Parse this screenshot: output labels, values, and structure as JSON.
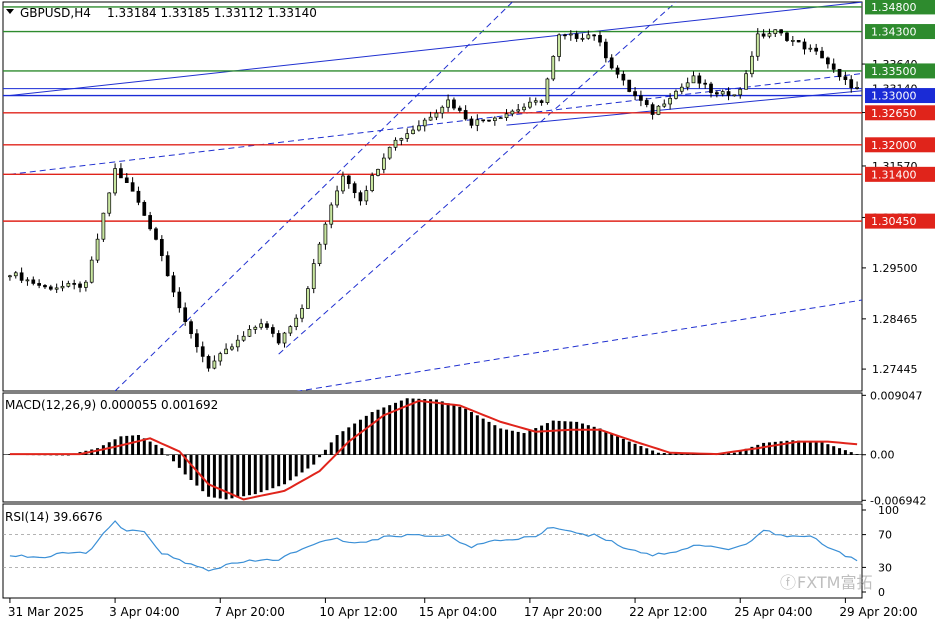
{
  "header": {
    "symbol": "GBPUSD,H4",
    "ohlc": "1.33184 1.33185 1.33112 1.33140"
  },
  "macd_panel": {
    "label": "MACD(12,26,9) 0.000055 0.001692",
    "ticks": [
      "0.009047",
      "0.00",
      "-0.006942"
    ]
  },
  "rsi_panel": {
    "label": "RSI(14) 39.6676",
    "ticks": [
      "100",
      "70",
      "30",
      "0"
    ]
  },
  "watermark": "FXTM富拓",
  "colors": {
    "bull": "#c8e6a0",
    "bear": "#000000",
    "support_line": "#e0241b",
    "resistance_line": "#2e8b2e",
    "current_line": "#1a2bd6",
    "channel": "#2030d0",
    "macd_signal": "#e0241b",
    "rsi_line": "#3a8fd6"
  },
  "chart_data": [
    {
      "type": "candlestick",
      "name": "GBPUSD,H4",
      "ylim": [
        1.27,
        1.349
      ],
      "y_ticks": [
        1.27445,
        1.28465,
        1.295,
        1.30525,
        1.3157,
        1.32655,
        1.3364
      ],
      "y_tick_labels": [
        "1.27445",
        "1.28465",
        "1.29500",
        "1.30525",
        "1.31570",
        "1.32655",
        "1.33640"
      ],
      "x_labels": [
        "31 Mar 2025",
        "3 Apr 04:00",
        "7 Apr 20:00",
        "10 Apr 12:00",
        "15 Apr 04:00",
        "17 Apr 20:00",
        "22 Apr 12:00",
        "25 Apr 04:00",
        "29 Apr 20:00"
      ],
      "candle_count": 146,
      "close_path": [
        {
          "bar": 0,
          "close": 1.294
        },
        {
          "bar": 6,
          "close": 1.291
        },
        {
          "bar": 13,
          "close": 1.2915
        },
        {
          "bar": 18,
          "close": 1.315
        },
        {
          "bar": 21,
          "close": 1.3105
        },
        {
          "bar": 25,
          "close": 1.301
        },
        {
          "bar": 30,
          "close": 1.2835
        },
        {
          "bar": 34,
          "close": 1.275
        },
        {
          "bar": 38,
          "close": 1.279
        },
        {
          "bar": 43,
          "close": 1.284
        },
        {
          "bar": 46,
          "close": 1.28
        },
        {
          "bar": 50,
          "close": 1.287
        },
        {
          "bar": 54,
          "close": 1.304
        },
        {
          "bar": 57,
          "close": 1.314
        },
        {
          "bar": 60,
          "close": 1.309
        },
        {
          "bar": 65,
          "close": 1.32
        },
        {
          "bar": 70,
          "close": 1.324
        },
        {
          "bar": 75,
          "close": 1.329
        },
        {
          "bar": 79,
          "close": 1.3245
        },
        {
          "bar": 84,
          "close": 1.326
        },
        {
          "bar": 91,
          "close": 1.329
        },
        {
          "bar": 94,
          "close": 1.342
        },
        {
          "bar": 97,
          "close": 1.342
        },
        {
          "bar": 100,
          "close": 1.3425
        },
        {
          "bar": 103,
          "close": 1.336
        },
        {
          "bar": 106,
          "close": 1.331
        },
        {
          "bar": 110,
          "close": 1.3265
        },
        {
          "bar": 113,
          "close": 1.33
        },
        {
          "bar": 117,
          "close": 1.3335
        },
        {
          "bar": 121,
          "close": 1.33
        },
        {
          "bar": 125,
          "close": 1.331
        },
        {
          "bar": 128,
          "close": 1.342
        },
        {
          "bar": 131,
          "close": 1.343
        },
        {
          "bar": 135,
          "close": 1.3405
        },
        {
          "bar": 139,
          "close": 1.338
        },
        {
          "bar": 142,
          "close": 1.3335
        },
        {
          "bar": 145,
          "close": 1.3314
        }
      ],
      "horizontal_levels": [
        {
          "price": 1.348,
          "label": "1.34800",
          "kind": "resistance"
        },
        {
          "price": 1.343,
          "label": "1.34300",
          "kind": "resistance"
        },
        {
          "price": 1.335,
          "label": "1.33500",
          "kind": "resistance"
        },
        {
          "price": 1.3314,
          "label": "1.33140",
          "kind": "current"
        },
        {
          "price": 1.33,
          "label": "1.33000",
          "kind": "current"
        },
        {
          "price": 1.3265,
          "label": "1.32650",
          "kind": "support"
        },
        {
          "price": 1.32,
          "label": "1.32000",
          "kind": "support"
        },
        {
          "price": 1.314,
          "label": "1.31400",
          "kind": "support"
        },
        {
          "price": 1.3045,
          "label": "1.30450",
          "kind": "support"
        }
      ],
      "trend_channels": [
        {
          "style": "solid",
          "from": {
            "bar": 0,
            "price": 1.33
          },
          "to": {
            "bar": 146,
            "price": 1.349
          }
        },
        {
          "style": "solid",
          "from": {
            "bar": 85,
            "price": 1.324
          },
          "to": {
            "bar": 146,
            "price": 1.331
          }
        },
        {
          "style": "dashed",
          "from": {
            "bar": 0,
            "price": 1.314
          },
          "to": {
            "bar": 146,
            "price": 1.3345
          }
        },
        {
          "style": "dashed",
          "from": {
            "bar": 0,
            "price": 1.2605
          },
          "to": {
            "bar": 146,
            "price": 1.2885
          }
        },
        {
          "style": "dashed",
          "from": {
            "bar": 18,
            "price": 1.27
          },
          "to": {
            "bar": 86,
            "price": 1.349
          }
        },
        {
          "style": "dashed",
          "from": {
            "bar": 46,
            "price": 1.2775
          },
          "to": {
            "bar": 114,
            "price": 1.349
          }
        }
      ]
    },
    {
      "type": "bar",
      "name": "MACD(12,26,9)",
      "main_value": 5.5e-05,
      "signal_value": 0.001692,
      "ylim": [
        -0.0072,
        0.0094
      ],
      "histogram_path": [
        {
          "bar": 0,
          "value": 0.0001
        },
        {
          "bar": 10,
          "value": 0.0
        },
        {
          "bar": 15,
          "value": 0.001
        },
        {
          "bar": 19,
          "value": 0.0028
        },
        {
          "bar": 22,
          "value": 0.003
        },
        {
          "bar": 26,
          "value": 0.001
        },
        {
          "bar": 30,
          "value": -0.003
        },
        {
          "bar": 34,
          "value": -0.0064
        },
        {
          "bar": 37,
          "value": -0.0068
        },
        {
          "bar": 42,
          "value": -0.006
        },
        {
          "bar": 47,
          "value": -0.0045
        },
        {
          "bar": 52,
          "value": -0.0015
        },
        {
          "bar": 56,
          "value": 0.003
        },
        {
          "bar": 62,
          "value": 0.0065
        },
        {
          "bar": 68,
          "value": 0.0086
        },
        {
          "bar": 73,
          "value": 0.0084
        },
        {
          "bar": 78,
          "value": 0.007
        },
        {
          "bar": 84,
          "value": 0.004
        },
        {
          "bar": 88,
          "value": 0.0033
        },
        {
          "bar": 93,
          "value": 0.0052
        },
        {
          "bar": 97,
          "value": 0.005
        },
        {
          "bar": 101,
          "value": 0.004
        },
        {
          "bar": 106,
          "value": 0.002
        },
        {
          "bar": 111,
          "value": 0.0003
        },
        {
          "bar": 117,
          "value": 0.0001
        },
        {
          "bar": 124,
          "value": 0.0003
        },
        {
          "bar": 129,
          "value": 0.0018
        },
        {
          "bar": 134,
          "value": 0.0022
        },
        {
          "bar": 139,
          "value": 0.0019
        },
        {
          "bar": 145,
          "value": 0.0001
        }
      ],
      "signal_path": [
        {
          "bar": 0,
          "value": 0.0001
        },
        {
          "bar": 12,
          "value": 0.0001
        },
        {
          "bar": 18,
          "value": 0.0012
        },
        {
          "bar": 24,
          "value": 0.0025
        },
        {
          "bar": 29,
          "value": 0.0005
        },
        {
          "bar": 34,
          "value": -0.0045
        },
        {
          "bar": 40,
          "value": -0.0068
        },
        {
          "bar": 47,
          "value": -0.0055
        },
        {
          "bar": 53,
          "value": -0.0025
        },
        {
          "bar": 58,
          "value": 0.002
        },
        {
          "bar": 64,
          "value": 0.006
        },
        {
          "bar": 70,
          "value": 0.0082
        },
        {
          "bar": 77,
          "value": 0.0075
        },
        {
          "bar": 84,
          "value": 0.005
        },
        {
          "bar": 90,
          "value": 0.0035
        },
        {
          "bar": 96,
          "value": 0.0038
        },
        {
          "bar": 101,
          "value": 0.0038
        },
        {
          "bar": 107,
          "value": 0.002
        },
        {
          "bar": 113,
          "value": 0.0003
        },
        {
          "bar": 121,
          "value": 0.0001
        },
        {
          "bar": 128,
          "value": 0.001
        },
        {
          "bar": 135,
          "value": 0.002
        },
        {
          "bar": 140,
          "value": 0.002
        },
        {
          "bar": 145,
          "value": 0.0016
        }
      ]
    },
    {
      "type": "line",
      "name": "RSI(14)",
      "current_value": 39.6676,
      "ylim": [
        0,
        100
      ],
      "levels": [
        70,
        30
      ],
      "rsi_path": [
        {
          "bar": 0,
          "value": 45
        },
        {
          "bar": 6,
          "value": 42
        },
        {
          "bar": 10,
          "value": 48
        },
        {
          "bar": 13,
          "value": 47
        },
        {
          "bar": 16,
          "value": 70
        },
        {
          "bar": 18,
          "value": 85
        },
        {
          "bar": 20,
          "value": 74
        },
        {
          "bar": 23,
          "value": 73
        },
        {
          "bar": 26,
          "value": 48
        },
        {
          "bar": 30,
          "value": 35
        },
        {
          "bar": 34,
          "value": 27
        },
        {
          "bar": 38,
          "value": 34
        },
        {
          "bar": 42,
          "value": 38
        },
        {
          "bar": 46,
          "value": 40
        },
        {
          "bar": 50,
          "value": 52
        },
        {
          "bar": 55,
          "value": 65
        },
        {
          "bar": 60,
          "value": 60
        },
        {
          "bar": 65,
          "value": 68
        },
        {
          "bar": 70,
          "value": 70
        },
        {
          "bar": 75,
          "value": 68
        },
        {
          "bar": 79,
          "value": 56
        },
        {
          "bar": 84,
          "value": 63
        },
        {
          "bar": 90,
          "value": 68
        },
        {
          "bar": 93,
          "value": 80
        },
        {
          "bar": 97,
          "value": 72
        },
        {
          "bar": 101,
          "value": 68
        },
        {
          "bar": 105,
          "value": 55
        },
        {
          "bar": 110,
          "value": 45
        },
        {
          "bar": 114,
          "value": 50
        },
        {
          "bar": 118,
          "value": 58
        },
        {
          "bar": 122,
          "value": 52
        },
        {
          "bar": 126,
          "value": 58
        },
        {
          "bar": 129,
          "value": 75
        },
        {
          "bar": 133,
          "value": 67
        },
        {
          "bar": 137,
          "value": 68
        },
        {
          "bar": 141,
          "value": 50
        },
        {
          "bar": 145,
          "value": 40
        }
      ]
    }
  ]
}
